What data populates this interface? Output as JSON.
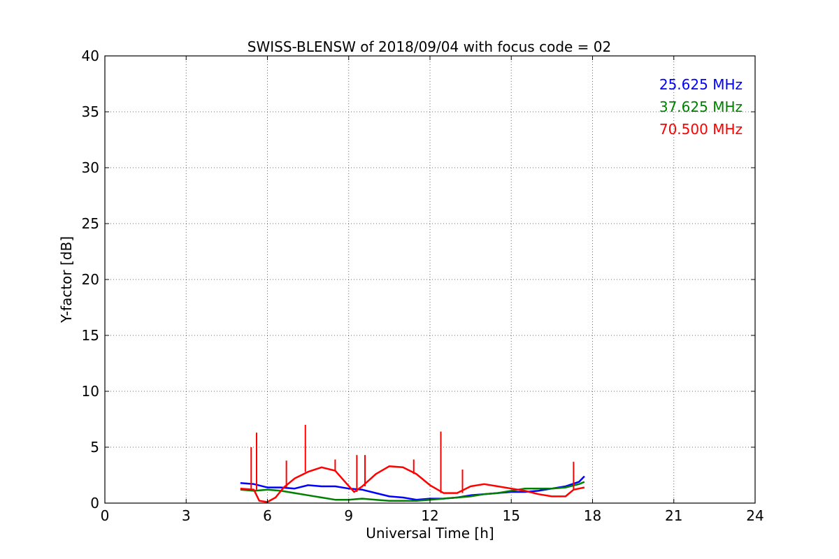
{
  "chart_data": {
    "type": "line",
    "title": "SWISS-BLENSW of 2018/09/04 with focus code = 02",
    "xlabel": "Universal Time [h]",
    "ylabel": "Y-factor [dB]",
    "xlim": [
      0,
      24
    ],
    "ylim": [
      0,
      40
    ],
    "xticks": [
      0,
      3,
      6,
      9,
      12,
      15,
      18,
      21,
      24
    ],
    "yticks": [
      0,
      5,
      10,
      15,
      20,
      25,
      30,
      35,
      40
    ],
    "grid": true,
    "legend_position": "top-right",
    "series": [
      {
        "name": "25.625 MHz",
        "color": "#0000ff",
        "x": [
          5.0,
          5.5,
          6.0,
          6.5,
          7.0,
          7.5,
          8.0,
          8.5,
          9.0,
          9.5,
          10.0,
          10.5,
          11.0,
          11.5,
          12.0,
          12.5,
          13.0,
          13.5,
          14.0,
          14.5,
          15.0,
          15.5,
          16.0,
          16.5,
          17.0,
          17.5,
          17.7
        ],
        "y": [
          1.8,
          1.7,
          1.4,
          1.4,
          1.3,
          1.6,
          1.5,
          1.5,
          1.3,
          1.2,
          0.9,
          0.6,
          0.5,
          0.3,
          0.4,
          0.4,
          0.5,
          0.7,
          0.8,
          0.9,
          1.0,
          1.0,
          1.1,
          1.3,
          1.5,
          1.9,
          2.4
        ]
      },
      {
        "name": "37.625 MHz",
        "color": "#008000",
        "x": [
          5.0,
          5.5,
          6.0,
          6.5,
          7.0,
          7.5,
          8.0,
          8.5,
          9.0,
          9.5,
          10.0,
          10.5,
          11.0,
          11.5,
          12.0,
          12.5,
          13.0,
          13.5,
          14.0,
          14.5,
          15.0,
          15.5,
          16.0,
          16.5,
          17.0,
          17.5,
          17.7
        ],
        "y": [
          1.2,
          1.1,
          1.2,
          1.1,
          0.9,
          0.7,
          0.5,
          0.3,
          0.3,
          0.4,
          0.3,
          0.2,
          0.2,
          0.2,
          0.3,
          0.4,
          0.5,
          0.6,
          0.8,
          0.9,
          1.1,
          1.3,
          1.3,
          1.3,
          1.4,
          1.7,
          1.9
        ]
      },
      {
        "name": "70.500 MHz",
        "color": "#ff0000",
        "x": [
          5.0,
          5.5,
          5.7,
          6.0,
          6.3,
          6.6,
          7.0,
          7.5,
          8.0,
          8.5,
          8.9,
          9.2,
          9.5,
          10.0,
          10.5,
          11.0,
          11.5,
          12.0,
          12.5,
          13.0,
          13.5,
          14.0,
          14.5,
          15.0,
          15.5,
          16.0,
          16.5,
          17.0,
          17.3,
          17.5,
          17.7
        ],
        "y": [
          1.3,
          1.2,
          0.2,
          0.1,
          0.5,
          1.4,
          2.2,
          2.8,
          3.2,
          2.9,
          1.8,
          1.0,
          1.5,
          2.6,
          3.3,
          3.2,
          2.6,
          1.6,
          0.9,
          0.9,
          1.5,
          1.7,
          1.5,
          1.3,
          1.1,
          0.8,
          0.6,
          0.6,
          1.2,
          1.3,
          1.4
        ]
      }
    ],
    "spikes": [
      {
        "series": 2,
        "x": 5.4,
        "y": 5.0
      },
      {
        "series": 2,
        "x": 5.6,
        "y": 6.3
      },
      {
        "series": 2,
        "x": 6.7,
        "y": 3.8
      },
      {
        "series": 2,
        "x": 7.4,
        "y": 7.0
      },
      {
        "series": 2,
        "x": 8.5,
        "y": 3.9
      },
      {
        "series": 2,
        "x": 9.3,
        "y": 4.3
      },
      {
        "series": 2,
        "x": 9.6,
        "y": 4.3
      },
      {
        "series": 2,
        "x": 11.4,
        "y": 3.9
      },
      {
        "series": 2,
        "x": 12.4,
        "y": 6.4
      },
      {
        "series": 2,
        "x": 13.2,
        "y": 3.0
      },
      {
        "series": 2,
        "x": 17.3,
        "y": 3.7
      }
    ]
  }
}
